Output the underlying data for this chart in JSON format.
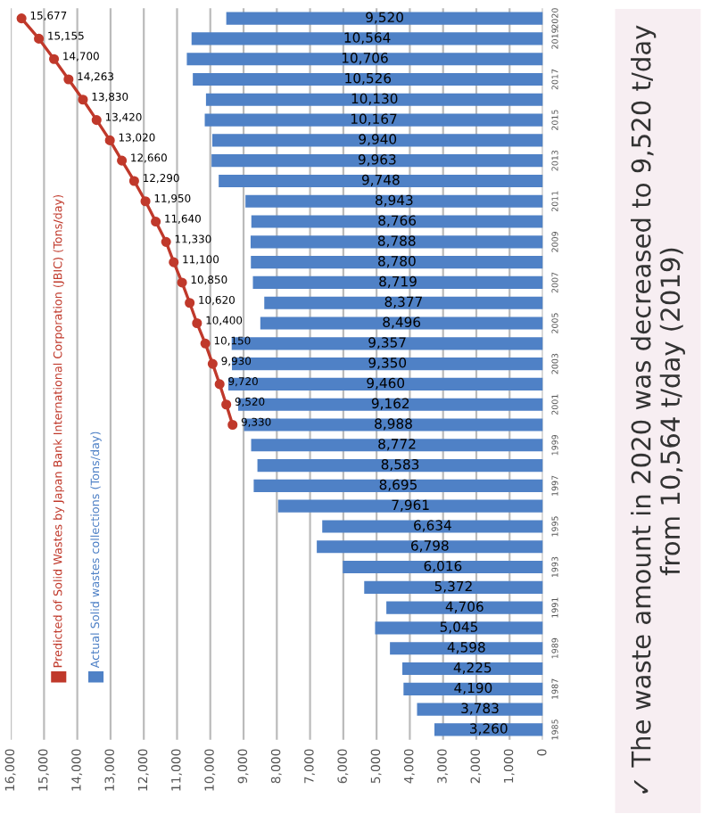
{
  "chart_data": {
    "type": "bar",
    "orientation": "horizontal",
    "categories": [
      "2020",
      "2019",
      null,
      "2017",
      null,
      "2015",
      null,
      "2013",
      null,
      "2011",
      null,
      "2009",
      null,
      "2007",
      null,
      "2005",
      null,
      "2003",
      null,
      "2001",
      null,
      "1999",
      null,
      "1997",
      null,
      "1995",
      null,
      "1993",
      null,
      "1991",
      null,
      "1989",
      null,
      "1987",
      null,
      "1985"
    ],
    "series": [
      {
        "name": "Actual Solid wastes collections (Tons/day)",
        "color": "#4f81c6",
        "values": [
          9520,
          10564,
          10706,
          10526,
          10130,
          10167,
          9940,
          9963,
          9748,
          8943,
          8766,
          8788,
          8780,
          8719,
          8377,
          8496,
          9357,
          9350,
          9460,
          9162,
          8988,
          8772,
          8583,
          8695,
          7961,
          6634,
          6798,
          6016,
          5372,
          4706,
          5045,
          4598,
          4225,
          4190,
          3783,
          3260
        ],
        "value_labels": [
          "9,520",
          "10,564",
          "10,706",
          "10,526",
          "10,130",
          "10,167",
          "9,940",
          "9,963",
          "9,748",
          "8,943",
          "8,766",
          "8,788",
          "8,780",
          "8,719",
          "8,377",
          "8,496",
          "9,357",
          "9,350",
          "9,460",
          "9,162",
          "8,988",
          "8,772",
          "8,583",
          "8,695",
          "7,961",
          "6,634",
          "6,798",
          "6,016",
          "5,372",
          "4,706",
          "5,045",
          "4,598",
          "4,225",
          "4,190",
          "3,783",
          "3,260"
        ]
      },
      {
        "name": "Predicted of Solid Wastes by Japan Bank International Corporation (JBIC) (Tons/day)",
        "type": "line",
        "color": "#c0392b",
        "values": [
          15677,
          15155,
          14700,
          14263,
          13830,
          13420,
          13020,
          12660,
          12290,
          11950,
          11640,
          11330,
          11100,
          10850,
          10620,
          10400,
          10150,
          9930,
          9720,
          9520,
          9330,
          null,
          null,
          null,
          null,
          null,
          null,
          null,
          null,
          null,
          null,
          null,
          null,
          null,
          null,
          null
        ],
        "value_labels": [
          "15,677",
          "15,155",
          "14,700",
          "14,263",
          "13,830",
          "13,420",
          "13,020",
          "12,660",
          "12,290",
          "11,950",
          "11,640",
          "11,330",
          "11,100",
          "10,850",
          "10,620",
          "10,400",
          "10,150",
          "9,930",
          "9,720",
          "9,520",
          "9,330",
          null,
          null,
          null,
          null,
          null,
          null,
          null,
          null,
          null,
          null,
          null,
          null,
          null,
          null,
          null
        ]
      }
    ],
    "xlim": [
      16000,
      0
    ],
    "xticks": [
      {
        "value": 16000,
        "label": "16,000"
      },
      {
        "value": 15000,
        "label": "15,000"
      },
      {
        "value": 14000,
        "label": "14,000"
      },
      {
        "value": 13000,
        "label": "13,000"
      },
      {
        "value": 12000,
        "label": "12,000"
      },
      {
        "value": 11000,
        "label": "11,000"
      },
      {
        "value": 10000,
        "label": "10,000"
      },
      {
        "value": 9000,
        "label": "9,000"
      },
      {
        "value": 8000,
        "label": "8,000"
      },
      {
        "value": 7000,
        "label": "7,000"
      },
      {
        "value": 6000,
        "label": "6,000"
      },
      {
        "value": 5000,
        "label": "5,000"
      },
      {
        "value": 4000,
        "label": "4,000"
      },
      {
        "value": 3000,
        "label": "3,000"
      },
      {
        "value": 2000,
        "label": "2,000"
      },
      {
        "value": 1000,
        "label": "1,000"
      },
      0
    ],
    "grid": "x",
    "legend": "bottom left",
    "marker": "circle",
    "data_labels": true,
    "annotations": [
      "✓ The waste amount in 2020 was decreased to 9,520 t/day from 10,564 t/day (2019)"
    ]
  }
}
